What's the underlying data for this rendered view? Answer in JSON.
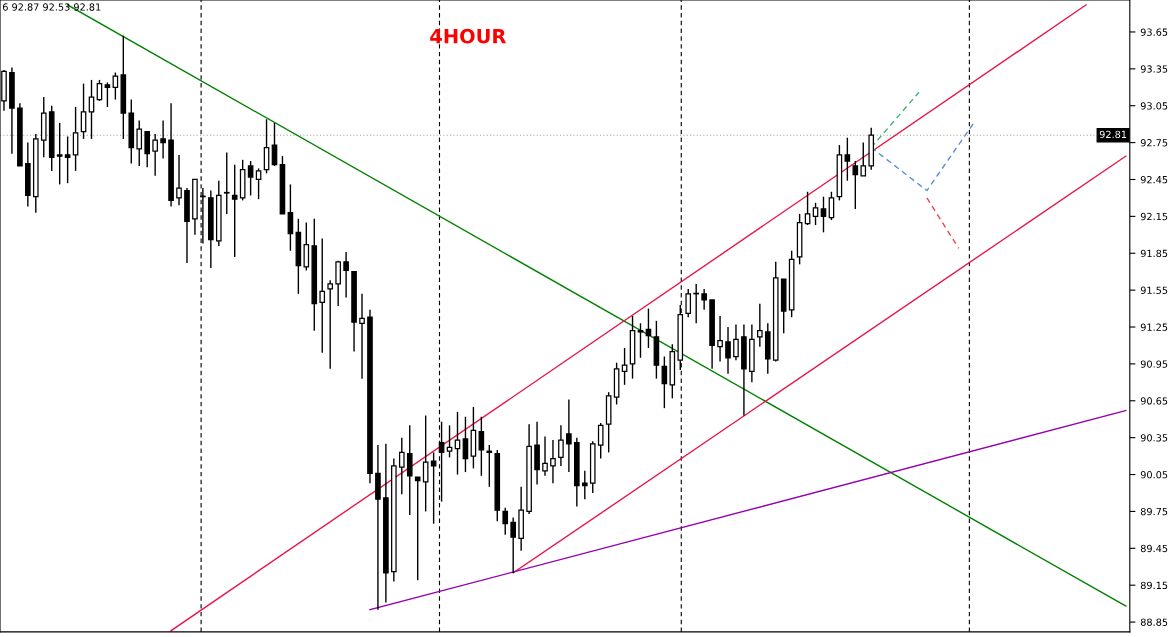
{
  "chart_data": {
    "type": "candlestick",
    "title": "4HOUR",
    "annotations": [
      "6 92.87 92.53 92.81"
    ],
    "categories": [
      null,
      null,
      null,
      null,
      null,
      null,
      null,
      null,
      null,
      null,
      null,
      null,
      null,
      null,
      null,
      null,
      null,
      null,
      null,
      null,
      null,
      null,
      null,
      null,
      null,
      null,
      null,
      null,
      null,
      null,
      null,
      null,
      null,
      null,
      null,
      null,
      null,
      null,
      null,
      null,
      null,
      null,
      null,
      null,
      null,
      null,
      null,
      null,
      null,
      null,
      null,
      null,
      null,
      null,
      null,
      null,
      null,
      null,
      null,
      null,
      null,
      null,
      null,
      null,
      null,
      null,
      null,
      null,
      null,
      null,
      null,
      null,
      null,
      null,
      null,
      null,
      null,
      null,
      null,
      null,
      null,
      null,
      null,
      null,
      null,
      null,
      null,
      null,
      null,
      null,
      null,
      null,
      null,
      null,
      null,
      null,
      null,
      null,
      null,
      null,
      null,
      null,
      null,
      null,
      null,
      null,
      null,
      null,
      null,
      null,
      null,
      null,
      null,
      null,
      null,
      null,
      null,
      null,
      null,
      null,
      null,
      null,
      null,
      null,
      null,
      null,
      null,
      null,
      null,
      null,
      null,
      null,
      null,
      null,
      null,
      null,
      null,
      null,
      null,
      null,
      null,
      null
    ],
    "ohlc": [
      [
        93.09,
        93.34,
        93.01,
        93.33
      ],
      [
        93.32,
        93.36,
        92.66,
        93.03
      ],
      [
        93.03,
        93.07,
        92.56,
        92.56
      ],
      [
        92.58,
        92.75,
        92.23,
        92.32
      ],
      [
        92.31,
        92.82,
        92.18,
        92.78
      ],
      [
        92.77,
        93.12,
        92.63,
        92.99
      ],
      [
        93.0,
        93.05,
        92.52,
        92.63
      ],
      [
        92.65,
        92.91,
        92.41,
        92.64
      ],
      [
        92.65,
        92.8,
        92.42,
        92.63
      ],
      [
        92.65,
        93.04,
        92.52,
        92.83
      ],
      [
        92.84,
        93.23,
        92.78,
        93.0
      ],
      [
        93.0,
        93.26,
        92.78,
        93.12
      ],
      [
        93.1,
        93.26,
        93.09,
        93.23
      ],
      [
        93.22,
        93.24,
        93.04,
        93.2
      ],
      [
        93.2,
        93.32,
        93.1,
        93.29
      ],
      [
        93.3,
        93.62,
        92.78,
        92.99
      ],
      [
        92.99,
        93.1,
        92.58,
        92.71
      ],
      [
        92.7,
        92.93,
        92.56,
        92.86
      ],
      [
        92.84,
        92.84,
        92.55,
        92.66
      ],
      [
        92.68,
        92.82,
        92.48,
        92.77
      ],
      [
        92.78,
        92.93,
        92.62,
        92.75
      ],
      [
        92.77,
        93.07,
        92.23,
        92.28
      ],
      [
        92.3,
        92.65,
        92.24,
        92.38
      ],
      [
        92.36,
        92.38,
        91.77,
        92.11
      ],
      [
        92.13,
        92.45,
        92.0,
        92.45
      ],
      [
        92.31,
        92.38,
        91.93,
        92.31
      ],
      [
        92.3,
        92.36,
        91.73,
        91.96
      ],
      [
        91.95,
        92.44,
        91.91,
        92.32
      ],
      [
        92.34,
        92.67,
        92.17,
        92.34
      ],
      [
        92.32,
        92.57,
        91.82,
        92.29
      ],
      [
        92.3,
        92.61,
        92.28,
        92.53
      ],
      [
        92.56,
        92.6,
        92.32,
        92.47
      ],
      [
        92.45,
        92.54,
        92.29,
        92.52
      ],
      [
        92.53,
        92.94,
        92.5,
        92.71
      ],
      [
        92.73,
        92.91,
        92.56,
        92.57
      ],
      [
        92.57,
        92.64,
        92.17,
        92.17
      ],
      [
        92.18,
        92.41,
        91.87,
        92.01
      ],
      [
        92.02,
        92.13,
        91.52,
        91.75
      ],
      [
        91.74,
        92.1,
        91.71,
        91.92
      ],
      [
        91.91,
        92.13,
        91.22,
        91.44
      ],
      [
        91.45,
        91.97,
        91.04,
        91.54
      ],
      [
        91.56,
        91.63,
        90.91,
        91.6
      ],
      [
        91.6,
        91.79,
        91.42,
        91.78
      ],
      [
        91.78,
        91.86,
        91.49,
        91.71
      ],
      [
        91.7,
        91.7,
        91.05,
        91.29
      ],
      [
        91.28,
        91.52,
        90.83,
        91.32
      ],
      [
        91.33,
        91.39,
        89.98,
        90.06
      ],
      [
        90.06,
        90.29,
        88.95,
        89.85
      ],
      [
        89.86,
        90.3,
        89.01,
        89.25
      ],
      [
        89.26,
        90.18,
        89.18,
        90.12
      ],
      [
        90.11,
        90.35,
        89.89,
        90.23
      ],
      [
        90.22,
        90.45,
        89.72,
        90.04
      ],
      [
        90.03,
        90.03,
        89.19,
        90.0
      ],
      [
        89.99,
        90.53,
        89.75,
        90.15
      ],
      [
        90.16,
        90.23,
        89.65,
        90.12
      ],
      [
        90.31,
        90.48,
        89.83,
        90.23
      ],
      [
        90.24,
        90.45,
        90.19,
        90.27
      ],
      [
        90.26,
        90.56,
        90.05,
        90.33
      ],
      [
        90.34,
        90.52,
        90.07,
        90.18
      ],
      [
        90.2,
        90.6,
        90.1,
        90.41
      ],
      [
        90.4,
        90.52,
        90.04,
        90.25
      ],
      [
        90.24,
        90.29,
        89.95,
        90.23
      ],
      [
        90.22,
        90.25,
        89.67,
        89.76
      ],
      [
        89.75,
        89.78,
        89.56,
        89.65
      ],
      [
        89.66,
        89.7,
        89.25,
        89.54
      ],
      [
        89.53,
        89.95,
        89.43,
        89.76
      ],
      [
        89.75,
        90.46,
        89.73,
        90.28
      ],
      [
        90.29,
        90.48,
        89.97,
        90.09
      ],
      [
        90.08,
        90.36,
        90.04,
        90.14
      ],
      [
        90.12,
        90.33,
        89.98,
        90.18
      ],
      [
        90.19,
        90.45,
        90.12,
        90.33
      ],
      [
        90.38,
        90.66,
        90.07,
        90.3
      ],
      [
        90.31,
        90.35,
        89.79,
        89.96
      ],
      [
        89.98,
        90.08,
        89.85,
        89.96
      ],
      [
        89.98,
        90.32,
        89.9,
        90.3
      ],
      [
        90.29,
        90.47,
        90.18,
        90.45
      ],
      [
        90.46,
        90.72,
        90.23,
        90.69
      ],
      [
        90.68,
        90.96,
        90.62,
        90.91
      ],
      [
        90.89,
        91.08,
        90.78,
        90.94
      ],
      [
        90.95,
        91.34,
        90.83,
        91.22
      ],
      [
        91.22,
        91.28,
        91.0,
        91.21
      ],
      [
        91.23,
        91.4,
        91.08,
        91.18
      ],
      [
        91.17,
        91.3,
        90.83,
        90.94
      ],
      [
        90.93,
        91.01,
        90.59,
        90.79
      ],
      [
        90.78,
        91.11,
        90.67,
        91.05
      ],
      [
        90.98,
        91.43,
        90.9,
        91.35
      ],
      [
        91.36,
        91.56,
        91.33,
        91.52
      ],
      [
        91.52,
        91.6,
        91.28,
        91.52
      ],
      [
        91.52,
        91.56,
        91.39,
        91.47
      ],
      [
        91.47,
        91.47,
        90.91,
        91.1
      ],
      [
        91.09,
        91.34,
        90.97,
        91.14
      ],
      [
        91.13,
        91.25,
        90.87,
        91.0
      ],
      [
        91.01,
        91.27,
        90.98,
        91.15
      ],
      [
        91.17,
        91.27,
        90.53,
        90.91
      ],
      [
        90.89,
        91.27,
        90.8,
        91.15
      ],
      [
        91.17,
        91.44,
        91.09,
        91.22
      ],
      [
        91.21,
        91.28,
        90.87,
        90.99
      ],
      [
        90.98,
        91.78,
        90.97,
        91.65
      ],
      [
        91.64,
        91.64,
        91.2,
        91.38
      ],
      [
        91.39,
        91.87,
        91.33,
        91.8
      ],
      [
        91.82,
        92.17,
        91.76,
        92.1
      ],
      [
        92.09,
        92.35,
        92.08,
        92.17
      ],
      [
        92.15,
        92.26,
        92.08,
        92.22
      ],
      [
        92.21,
        92.31,
        92.02,
        92.15
      ],
      [
        92.14,
        92.35,
        92.12,
        92.3
      ],
      [
        92.31,
        92.73,
        92.28,
        92.65
      ],
      [
        92.65,
        92.79,
        92.44,
        92.6
      ],
      [
        92.56,
        92.6,
        92.21,
        92.49
      ],
      [
        92.48,
        92.75,
        92.48,
        92.56
      ],
      [
        92.56,
        92.87,
        92.53,
        92.81
      ],
      null,
      null,
      null,
      null,
      null,
      null,
      null,
      null,
      null,
      null,
      null,
      null,
      null,
      null,
      null,
      null,
      null,
      null,
      null,
      null,
      null,
      null,
      null,
      null,
      null,
      null,
      null,
      null,
      null,
      null,
      null,
      null
    ],
    "series": [
      {
        "type": "line",
        "color": "#008000",
        "values": [
          null,
          null,
          null,
          null,
          null,
          null,
          null,
          null,
          93.87,
          null,
          null,
          null,
          null,
          null,
          null,
          null,
          null,
          null,
          null,
          null,
          null,
          null,
          null,
          null,
          null,
          null,
          null,
          null,
          null,
          null,
          null,
          null,
          null,
          null,
          null,
          null,
          null,
          null,
          null,
          null,
          null,
          null,
          null,
          null,
          null,
          null,
          null,
          null,
          null,
          null,
          null,
          null,
          null,
          null,
          null,
          null,
          null,
          null,
          null,
          null,
          null,
          null,
          null,
          null,
          null,
          null,
          null,
          null,
          null,
          null,
          null,
          null,
          null,
          null,
          null,
          null,
          null,
          null,
          null,
          null,
          null,
          null,
          null,
          null,
          null,
          null,
          null,
          null,
          null,
          null,
          null,
          null,
          null,
          null,
          null,
          null,
          null,
          null,
          null,
          null,
          null,
          null,
          null,
          null,
          null,
          null,
          null,
          null,
          null,
          null,
          null,
          null,
          null,
          null,
          null,
          null,
          null,
          null,
          null,
          null,
          null,
          null,
          null,
          null,
          null,
          null,
          null,
          null,
          null,
          null,
          null,
          null,
          null,
          null,
          null,
          null,
          null,
          null,
          null,
          null,
          null,
          88.98
        ]
      },
      {
        "type": "line",
        "color": "#e8174a",
        "values": [
          null,
          null,
          null,
          null,
          null,
          null,
          null,
          null,
          null,
          null,
          null,
          null,
          null,
          null,
          null,
          null,
          null,
          null,
          null,
          null,
          null,
          88.78,
          null,
          null,
          null,
          null,
          null,
          null,
          null,
          null,
          null,
          null,
          null,
          null,
          null,
          null,
          null,
          null,
          null,
          null,
          null,
          null,
          null,
          null,
          null,
          null,
          null,
          null,
          null,
          null,
          null,
          null,
          null,
          null,
          null,
          null,
          null,
          null,
          null,
          null,
          null,
          null,
          null,
          null,
          null,
          null,
          null,
          null,
          null,
          null,
          null,
          null,
          null,
          null,
          null,
          null,
          null,
          null,
          null,
          null,
          null,
          null,
          null,
          null,
          null,
          null,
          null,
          null,
          null,
          null,
          null,
          null,
          null,
          null,
          null,
          null,
          null,
          null,
          null,
          null,
          null,
          null,
          null,
          null,
          null,
          null,
          null,
          null,
          null,
          null,
          null,
          null,
          null,
          null,
          null,
          null,
          null,
          null,
          null,
          null,
          null,
          null,
          null,
          null,
          null,
          null,
          null,
          null,
          null,
          null,
          null,
          null,
          null,
          null,
          null,
          null,
          93.87,
          null,
          null,
          null,
          null,
          null
        ]
      },
      {
        "type": "line",
        "color": "#e8174a",
        "values": [
          null,
          null,
          null,
          null,
          null,
          null,
          null,
          null,
          null,
          null,
          null,
          null,
          null,
          null,
          null,
          null,
          null,
          null,
          null,
          null,
          null,
          null,
          null,
          null,
          null,
          null,
          null,
          null,
          null,
          null,
          null,
          null,
          null,
          null,
          null,
          null,
          null,
          null,
          null,
          null,
          null,
          null,
          null,
          null,
          null,
          null,
          null,
          null,
          null,
          null,
          null,
          null,
          null,
          null,
          null,
          null,
          null,
          null,
          null,
          null,
          null,
          null,
          null,
          null,
          89.25,
          null,
          null,
          null,
          null,
          null,
          null,
          null,
          null,
          null,
          null,
          null,
          null,
          null,
          null,
          null,
          null,
          null,
          null,
          null,
          null,
          null,
          null,
          null,
          null,
          null,
          null,
          null,
          null,
          null,
          null,
          null,
          null,
          null,
          null,
          null,
          null,
          null,
          null,
          null,
          null,
          null,
          null,
          null,
          null,
          null,
          null,
          null,
          null,
          null,
          null,
          null,
          null,
          null,
          null,
          null,
          null,
          null,
          null,
          null,
          null,
          null,
          null,
          null,
          null,
          null,
          null,
          null,
          null,
          null,
          null,
          null,
          null,
          null,
          null,
          null,
          null,
          92.64
        ]
      },
      {
        "type": "line",
        "color": "#9400b0",
        "values": [
          null,
          null,
          null,
          null,
          null,
          null,
          null,
          null,
          null,
          null,
          null,
          null,
          null,
          null,
          null,
          null,
          null,
          null,
          null,
          null,
          null,
          null,
          null,
          null,
          null,
          null,
          null,
          null,
          null,
          null,
          null,
          null,
          null,
          null,
          null,
          null,
          null,
          null,
          null,
          null,
          null,
          null,
          null,
          null,
          null,
          null,
          88.95,
          null,
          null,
          null,
          null,
          null,
          null,
          null,
          null,
          null,
          null,
          null,
          null,
          null,
          null,
          null,
          null,
          null,
          null,
          null,
          null,
          null,
          null,
          null,
          null,
          null,
          null,
          null,
          null,
          null,
          null,
          null,
          null,
          null,
          null,
          null,
          null,
          null,
          null,
          null,
          null,
          null,
          null,
          null,
          null,
          null,
          null,
          null,
          null,
          null,
          null,
          null,
          null,
          null,
          null,
          null,
          null,
          null,
          null,
          null,
          null,
          null,
          null,
          null,
          null,
          null,
          null,
          null,
          null,
          null,
          null,
          null,
          null,
          null,
          null,
          null,
          null,
          null,
          null,
          null,
          null,
          null,
          null,
          null,
          null,
          null,
          null,
          null,
          null,
          null,
          null,
          null,
          null,
          null,
          null,
          90.57
        ]
      },
      {
        "type": "line",
        "color": "#3cb371",
        "line_style": "dashed",
        "values": [
          null,
          null,
          null,
          null,
          null,
          null,
          null,
          null,
          null,
          null,
          null,
          null,
          null,
          null,
          null,
          null,
          null,
          null,
          null,
          null,
          null,
          null,
          null,
          null,
          null,
          null,
          null,
          null,
          null,
          null,
          null,
          null,
          null,
          null,
          null,
          null,
          null,
          null,
          null,
          null,
          null,
          null,
          null,
          null,
          null,
          null,
          null,
          null,
          null,
          null,
          null,
          null,
          null,
          null,
          null,
          null,
          null,
          null,
          null,
          null,
          null,
          null,
          null,
          null,
          null,
          null,
          null,
          null,
          null,
          null,
          null,
          null,
          null,
          null,
          null,
          null,
          null,
          null,
          null,
          null,
          null,
          null,
          null,
          null,
          null,
          null,
          null,
          null,
          null,
          null,
          null,
          null,
          null,
          null,
          null,
          null,
          null,
          null,
          null,
          null,
          null,
          null,
          null,
          null,
          null,
          null,
          null,
          null,
          null,
          92.71,
          null,
          null,
          null,
          null,
          null,
          93.16,
          null,
          null,
          null,
          null,
          null,
          null,
          null,
          null,
          null,
          null,
          null,
          null,
          null,
          null,
          null,
          null,
          null,
          null,
          null,
          null,
          null,
          null,
          null,
          null,
          null,
          null
        ]
      },
      {
        "type": "line",
        "color": "#5b8fd6",
        "line_style": "dashed",
        "values": [
          null,
          null,
          null,
          null,
          null,
          null,
          null,
          null,
          null,
          null,
          null,
          null,
          null,
          null,
          null,
          null,
          null,
          null,
          null,
          null,
          null,
          null,
          null,
          null,
          null,
          null,
          null,
          null,
          null,
          null,
          null,
          null,
          null,
          null,
          null,
          null,
          null,
          null,
          null,
          null,
          null,
          null,
          null,
          null,
          null,
          null,
          null,
          null,
          null,
          null,
          null,
          null,
          null,
          null,
          null,
          null,
          null,
          null,
          null,
          null,
          null,
          null,
          null,
          null,
          null,
          null,
          null,
          null,
          null,
          null,
          null,
          null,
          null,
          null,
          null,
          null,
          null,
          null,
          null,
          null,
          null,
          null,
          null,
          null,
          null,
          null,
          null,
          null,
          null,
          null,
          null,
          null,
          null,
          null,
          null,
          null,
          null,
          null,
          null,
          null,
          null,
          null,
          null,
          null,
          null,
          null,
          null,
          null,
          null,
          92.71,
          null,
          null,
          null,
          null,
          null,
          null,
          92.36,
          null,
          null,
          null,
          null,
          null,
          92.92,
          null,
          null,
          null,
          null,
          null,
          null,
          null,
          null,
          null,
          null,
          null,
          null,
          null,
          null,
          null,
          null,
          null,
          null,
          null
        ]
      },
      {
        "type": "line",
        "color": "#ee4444",
        "line_style": "dashed",
        "values": [
          null,
          null,
          null,
          null,
          null,
          null,
          null,
          null,
          null,
          null,
          null,
          null,
          null,
          null,
          null,
          null,
          null,
          null,
          null,
          null,
          null,
          null,
          null,
          null,
          null,
          null,
          null,
          null,
          null,
          null,
          null,
          null,
          null,
          null,
          null,
          null,
          null,
          null,
          null,
          null,
          null,
          null,
          null,
          null,
          null,
          null,
          null,
          null,
          null,
          null,
          null,
          null,
          null,
          null,
          null,
          null,
          null,
          null,
          null,
          null,
          null,
          null,
          null,
          null,
          null,
          null,
          null,
          null,
          null,
          null,
          null,
          null,
          null,
          null,
          null,
          null,
          null,
          null,
          null,
          null,
          null,
          null,
          null,
          null,
          null,
          null,
          null,
          null,
          null,
          null,
          null,
          null,
          null,
          null,
          null,
          null,
          null,
          null,
          null,
          null,
          null,
          null,
          null,
          null,
          null,
          null,
          null,
          null,
          null,
          null,
          null,
          null,
          null,
          null,
          null,
          null,
          92.3,
          null,
          null,
          null,
          91.89,
          null,
          null,
          null,
          null,
          null,
          null,
          null,
          null,
          null,
          null,
          null,
          null,
          null,
          null,
          null,
          null,
          null,
          null,
          null,
          null,
          null
        ]
      }
    ],
    "ref_lines": [
      {
        "axis": "y",
        "value": 92.81,
        "label": "92.81",
        "color": "#a0a0a0",
        "line_style": "dotted"
      }
    ],
    "ylim": [
      88.77,
      93.91
    ],
    "yticks": [
      88.85,
      89.15,
      89.45,
      89.75,
      90.05,
      90.35,
      90.65,
      90.95,
      91.25,
      91.55,
      91.85,
      92.15,
      92.45,
      92.75,
      93.05,
      93.35,
      93.65
    ],
    "tick_labels": "y",
    "grid": false,
    "legend": false
  }
}
